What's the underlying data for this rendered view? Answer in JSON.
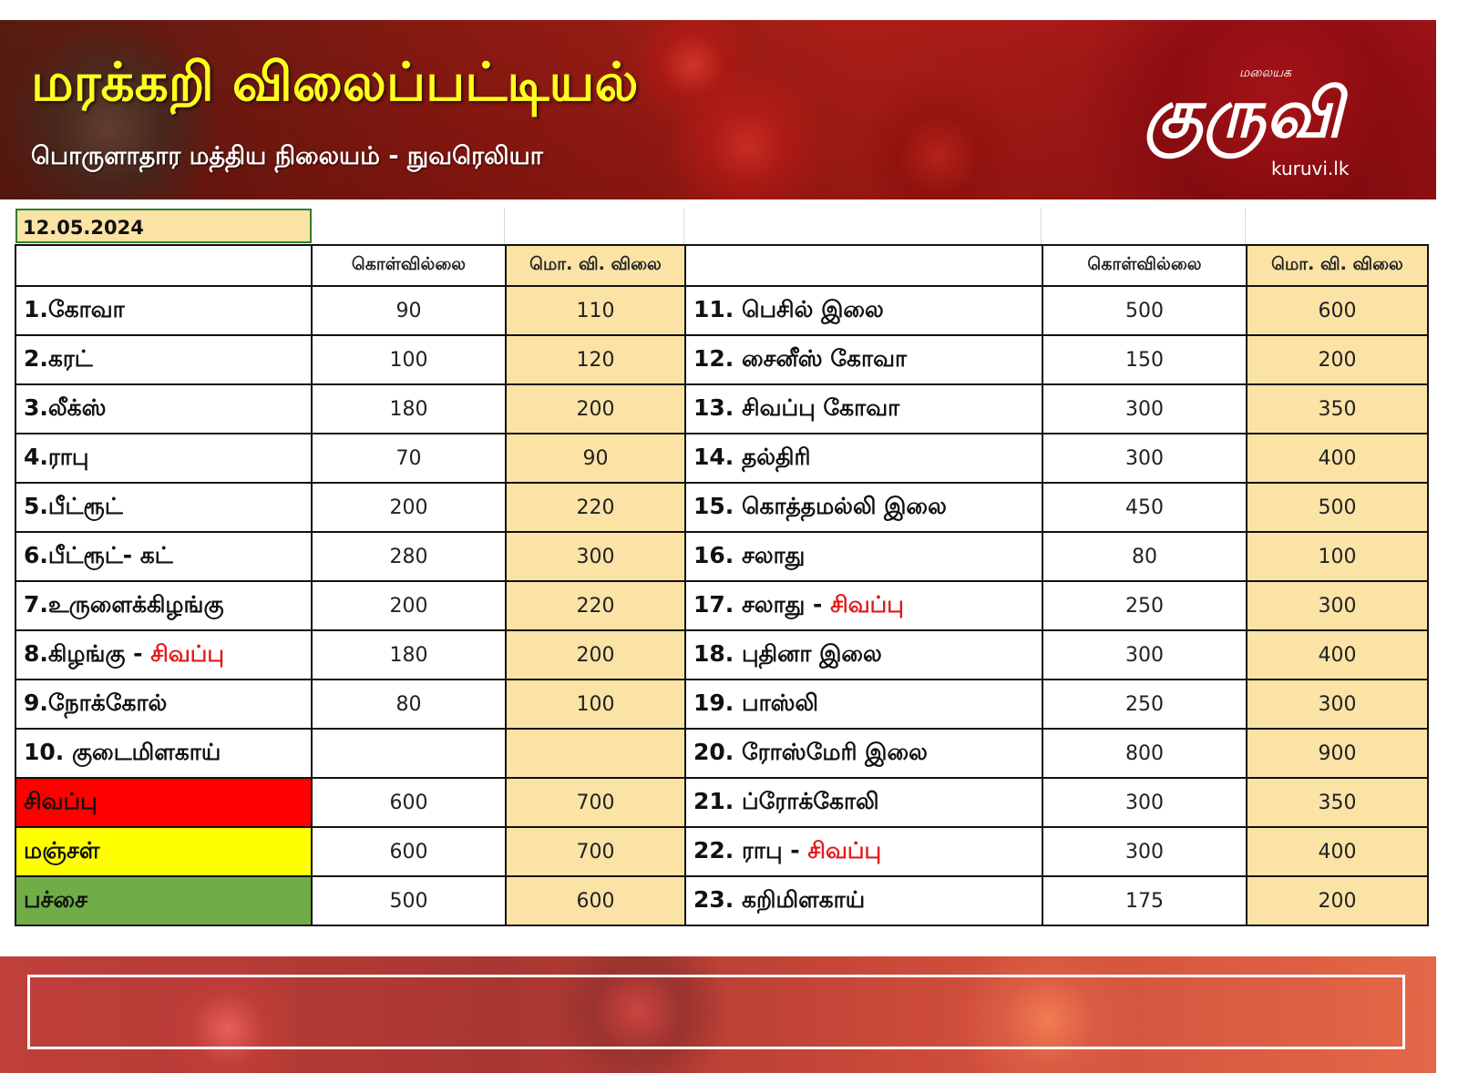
{
  "header": {
    "title": "மரக்கறி விலைப்பட்டியல்",
    "subtitle": "பொருளாதார மத்திய நிலையம் - நுவரெலியா",
    "logo_small": "மலையக",
    "logo_main": "குருவி",
    "logo_url": "kuruvi.lk"
  },
  "sheet": {
    "date": "12.05.2024",
    "headers": {
      "wholesale": "கொள்வில்லை",
      "retail": "மொ. வி. விலை"
    },
    "rows": [
      {
        "left_name": "1.கோவா",
        "left_wholesale": "90",
        "left_retail": "110",
        "right_name": "11. பெசில் இலை",
        "right_wholesale": "500",
        "right_retail": "600"
      },
      {
        "left_name": "2.கரட்",
        "left_wholesale": "100",
        "left_retail": "120",
        "right_name": "12. சைனீஸ் கோவா",
        "right_wholesale": "150",
        "right_retail": "200"
      },
      {
        "left_name": "3.லீக்ஸ்",
        "left_wholesale": "180",
        "left_retail": "200",
        "right_name": "13. சிவப்பு கோவா",
        "right_wholesale": "300",
        "right_retail": "350"
      },
      {
        "left_name": "4.ராபு",
        "left_wholesale": "70",
        "left_retail": "90",
        "right_name": "14. தல்திரி",
        "right_wholesale": "300",
        "right_retail": "400"
      },
      {
        "left_name": "5.பீட்ரூட்",
        "left_wholesale": "200",
        "left_retail": "220",
        "right_name": "15. கொத்தமல்லி இலை",
        "right_wholesale": "450",
        "right_retail": "500"
      },
      {
        "left_name": "6.பீட்ரூட்- கட்",
        "left_wholesale": "280",
        "left_retail": "300",
        "right_name": "16. சலாது",
        "right_wholesale": "80",
        "right_retail": "100"
      },
      {
        "left_name": "7.உருளைக்கிழங்கு",
        "left_wholesale": "200",
        "left_retail": "220",
        "right_name": "17. சலாது - ",
        "right_name_red": "சிவப்பு",
        "right_wholesale": "250",
        "right_retail": "300"
      },
      {
        "left_name": "8.கிழங்கு - ",
        "left_name_red": "சிவப்பு",
        "left_wholesale": "180",
        "left_retail": "200",
        "right_name": "18. புதினா இலை",
        "right_wholesale": "300",
        "right_retail": "400"
      },
      {
        "left_name": "9.நோக்கோல்",
        "left_wholesale": "80",
        "left_retail": "100",
        "right_name": "19. பாஸ்லி",
        "right_wholesale": "250",
        "right_retail": "300"
      },
      {
        "left_name": "10. குடைமிளகாய்",
        "left_wholesale": "",
        "left_retail": "",
        "right_name": "20. ரோஸ்மேரி இலை",
        "right_wholesale": "800",
        "right_retail": "900"
      },
      {
        "left_name": "சிவப்பு",
        "left_wholesale": "600",
        "left_retail": "700",
        "right_name": "21. ப்ரோக்கோலி",
        "right_wholesale": "300",
        "right_retail": "350"
      },
      {
        "left_name": "மஞ்சள்",
        "left_wholesale": "600",
        "left_retail": "700",
        "right_name": "22. ராபு - ",
        "right_name_red": "சிவப்பு",
        "right_wholesale": "300",
        "right_retail": "400"
      },
      {
        "left_name": "பச்சை",
        "left_wholesale": "500",
        "left_retail": "600",
        "right_name": "23. கறிமிளகாய்",
        "right_wholesale": "175",
        "right_retail": "200"
      }
    ]
  },
  "colors": {
    "title_yellow": "#ffff1e",
    "price_cell_bg": "#fbe3a6",
    "capsicum_red": "#ff0000",
    "capsicum_yellow": "#ffff00",
    "capsicum_green": "#70ad47",
    "highlight_text_red": "#e11a1a"
  }
}
